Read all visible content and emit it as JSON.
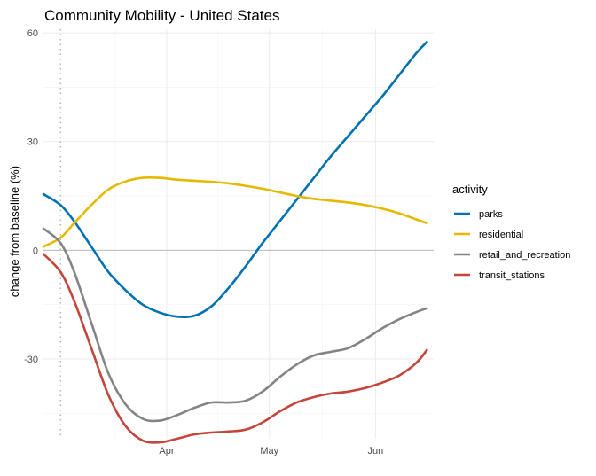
{
  "chart_data": {
    "type": "line",
    "title": "Community Mobility - United States",
    "xlabel": "",
    "ylabel": "change from baseline (%)",
    "ylim": [
      -52,
      61
    ],
    "xlim": [
      "2020-02-25",
      "2020-06-18"
    ],
    "x_ticks": [
      {
        "date": "2020-04-01",
        "label": "Apr"
      },
      {
        "date": "2020-05-01",
        "label": "May"
      },
      {
        "date": "2020-06-01",
        "label": "Jun"
      }
    ],
    "y_ticks": [
      -30,
      0,
      30,
      60
    ],
    "reference_hline": 0,
    "reference_vline_date": "2020-03-01",
    "legend_title": "activity",
    "legend_position": "right",
    "grid": true,
    "series": [
      {
        "name": "parks",
        "color": "#0072B2",
        "points": [
          [
            "2020-02-25",
            15.5
          ],
          [
            "2020-03-01",
            12.5
          ],
          [
            "2020-03-05",
            8
          ],
          [
            "2020-03-10",
            1
          ],
          [
            "2020-03-15",
            -6
          ],
          [
            "2020-03-20",
            -11
          ],
          [
            "2020-03-25",
            -15
          ],
          [
            "2020-03-30",
            -17.2
          ],
          [
            "2020-04-04",
            -18.3
          ],
          [
            "2020-04-09",
            -18.1
          ],
          [
            "2020-04-14",
            -15.5
          ],
          [
            "2020-04-19",
            -10.5
          ],
          [
            "2020-04-24",
            -4.5
          ],
          [
            "2020-04-29",
            2
          ],
          [
            "2020-05-04",
            8
          ],
          [
            "2020-05-09",
            14
          ],
          [
            "2020-05-14",
            20
          ],
          [
            "2020-05-19",
            26
          ],
          [
            "2020-05-24",
            31.5
          ],
          [
            "2020-05-29",
            37
          ],
          [
            "2020-06-03",
            42.5
          ],
          [
            "2020-06-08",
            48.5
          ],
          [
            "2020-06-13",
            54.5
          ],
          [
            "2020-06-16",
            57.5
          ]
        ]
      },
      {
        "name": "residential",
        "color": "#E7B800",
        "points": [
          [
            "2020-02-25",
            1
          ],
          [
            "2020-03-01",
            3.5
          ],
          [
            "2020-03-05",
            7.5
          ],
          [
            "2020-03-10",
            12.5
          ],
          [
            "2020-03-15",
            16.8
          ],
          [
            "2020-03-20",
            19
          ],
          [
            "2020-03-25",
            20
          ],
          [
            "2020-03-30",
            20
          ],
          [
            "2020-04-04",
            19.5
          ],
          [
            "2020-04-09",
            19.2
          ],
          [
            "2020-04-14",
            18.9
          ],
          [
            "2020-04-19",
            18.5
          ],
          [
            "2020-04-24",
            17.8
          ],
          [
            "2020-04-29",
            17
          ],
          [
            "2020-05-04",
            16
          ],
          [
            "2020-05-09",
            15
          ],
          [
            "2020-05-14",
            14.2
          ],
          [
            "2020-05-19",
            13.7
          ],
          [
            "2020-05-24",
            13.2
          ],
          [
            "2020-05-29",
            12.5
          ],
          [
            "2020-06-03",
            11.5
          ],
          [
            "2020-06-08",
            10.2
          ],
          [
            "2020-06-13",
            8.5
          ],
          [
            "2020-06-16",
            7.5
          ]
        ]
      },
      {
        "name": "retail_and_recreation",
        "color": "#848484",
        "points": [
          [
            "2020-02-25",
            6
          ],
          [
            "2020-03-01",
            2
          ],
          [
            "2020-03-05",
            -6
          ],
          [
            "2020-03-10",
            -20
          ],
          [
            "2020-03-15",
            -34
          ],
          [
            "2020-03-20",
            -42.5
          ],
          [
            "2020-03-25",
            -46.5
          ],
          [
            "2020-03-30",
            -47
          ],
          [
            "2020-04-04",
            -45.5
          ],
          [
            "2020-04-09",
            -43.5
          ],
          [
            "2020-04-14",
            -42
          ],
          [
            "2020-04-19",
            -42
          ],
          [
            "2020-04-24",
            -41.5
          ],
          [
            "2020-04-29",
            -39
          ],
          [
            "2020-05-04",
            -35
          ],
          [
            "2020-05-09",
            -31.5
          ],
          [
            "2020-05-14",
            -29
          ],
          [
            "2020-05-19",
            -28
          ],
          [
            "2020-05-24",
            -27
          ],
          [
            "2020-05-29",
            -24.5
          ],
          [
            "2020-06-03",
            -21.5
          ],
          [
            "2020-06-08",
            -19
          ],
          [
            "2020-06-13",
            -17
          ],
          [
            "2020-06-16",
            -16
          ]
        ]
      },
      {
        "name": "transit_stations",
        "color": "#C4453C",
        "points": [
          [
            "2020-02-25",
            -1
          ],
          [
            "2020-03-01",
            -6
          ],
          [
            "2020-03-05",
            -14
          ],
          [
            "2020-03-10",
            -27
          ],
          [
            "2020-03-15",
            -40
          ],
          [
            "2020-03-20",
            -48.5
          ],
          [
            "2020-03-25",
            -52.5
          ],
          [
            "2020-03-30",
            -53
          ],
          [
            "2020-04-04",
            -52
          ],
          [
            "2020-04-09",
            -50.8
          ],
          [
            "2020-04-14",
            -50.3
          ],
          [
            "2020-04-19",
            -50
          ],
          [
            "2020-04-24",
            -49.5
          ],
          [
            "2020-04-29",
            -47.5
          ],
          [
            "2020-05-04",
            -44.5
          ],
          [
            "2020-05-09",
            -42
          ],
          [
            "2020-05-14",
            -40.5
          ],
          [
            "2020-05-19",
            -39.5
          ],
          [
            "2020-05-24",
            -39
          ],
          [
            "2020-05-29",
            -38
          ],
          [
            "2020-06-03",
            -36.5
          ],
          [
            "2020-06-08",
            -34.5
          ],
          [
            "2020-06-13",
            -31
          ],
          [
            "2020-06-16",
            -27.5
          ]
        ]
      }
    ]
  }
}
